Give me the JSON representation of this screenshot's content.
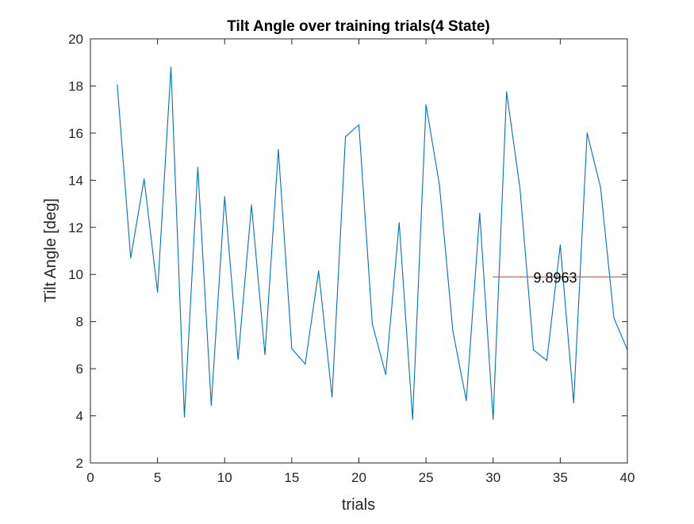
{
  "chart_data": {
    "type": "line",
    "title": "Tilt Angle over training trials(4 State)",
    "xlabel": "trials",
    "ylabel": "Tilt Angle [deg]",
    "xlim": [
      0,
      40
    ],
    "ylim": [
      2,
      20
    ],
    "xticks": [
      "0",
      "5",
      "10",
      "15",
      "20",
      "25",
      "30",
      "35",
      "40"
    ],
    "yticks": [
      "2",
      "4",
      "6",
      "8",
      "10",
      "12",
      "14",
      "16",
      "18",
      "20"
    ],
    "grid": false,
    "series": [
      {
        "color": "#0072BD",
        "x": [
          2,
          3,
          4,
          5,
          6,
          7,
          8,
          9,
          10,
          11,
          12,
          13,
          14,
          15,
          16,
          17,
          18,
          19,
          20,
          21,
          22,
          23,
          24,
          25,
          26,
          27,
          28,
          29,
          30,
          31,
          32,
          33,
          34,
          35,
          36,
          37,
          38,
          39,
          40
        ],
        "y": [
          18.05,
          10.7,
          14.05,
          9.25,
          18.8,
          3.95,
          14.55,
          4.45,
          13.3,
          6.4,
          12.95,
          6.6,
          15.3,
          6.85,
          6.2,
          10.15,
          4.8,
          15.85,
          16.35,
          7.9,
          5.75,
          12.2,
          3.85,
          17.2,
          13.8,
          7.6,
          4.65,
          12.6,
          3.85,
          17.75,
          13.65,
          6.8,
          6.35,
          11.25,
          4.55,
          16.0,
          13.7,
          8.15,
          6.8
        ]
      },
      {
        "color": "#D95319",
        "x": [
          30,
          40
        ],
        "y": [
          9.8963,
          9.8963
        ]
      }
    ],
    "annotations": [
      {
        "text": "9.8963",
        "x": 33,
        "y": 9.8963
      }
    ]
  }
}
